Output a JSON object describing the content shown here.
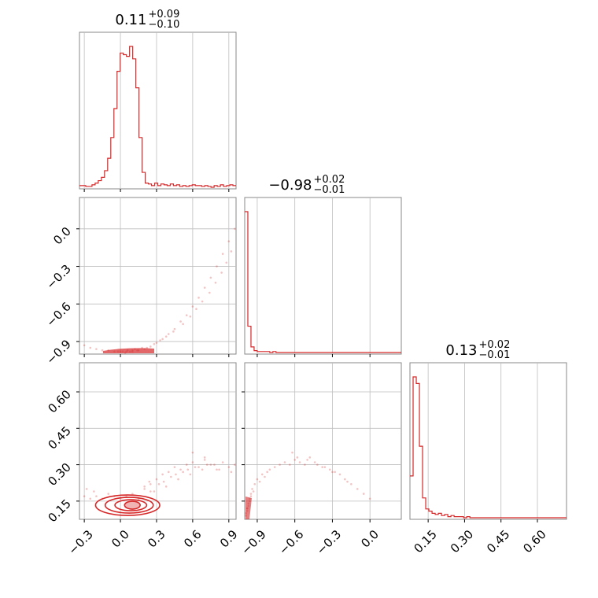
{
  "colors": {
    "series": "#d62728",
    "grid": "#bebebe",
    "frame": "#888888"
  },
  "chart_data": [
    {
      "type": "histogram",
      "panel": "diag-0",
      "title": {
        "value": "0.11",
        "plus": "+0.09",
        "minus": "−0.10"
      },
      "xlim": [
        -0.34,
        0.96
      ],
      "bin_width": 0.026,
      "counts": [
        2,
        2,
        1,
        1,
        3,
        5,
        8,
        12,
        20,
        35,
        60,
        95,
        140,
        162,
        160,
        158,
        170,
        155,
        120,
        60,
        18,
        5,
        4,
        2,
        5,
        2,
        4,
        3,
        2,
        4,
        2,
        3,
        1,
        2,
        1,
        2,
        3,
        2,
        2,
        1,
        2,
        1,
        0,
        2,
        1,
        3,
        1,
        2,
        3,
        2
      ]
    },
    {
      "type": "histogram",
      "panel": "diag-1",
      "title": {
        "value": "−0.98",
        "plus": "+0.02",
        "minus": "−0.01"
      },
      "xlim": [
        -1.0,
        0.25
      ],
      "bin_width": 0.025,
      "counts": [
        150,
        28,
        6,
        2,
        1,
        1,
        1,
        1,
        0,
        1,
        0,
        0,
        0,
        0,
        0,
        0,
        0,
        0,
        0,
        0,
        0,
        0,
        0,
        0,
        0,
        0,
        0,
        0,
        0,
        0,
        0,
        0,
        0,
        0,
        0,
        0,
        0,
        0,
        0,
        0,
        0,
        0,
        0,
        0,
        0,
        0,
        0,
        0,
        0,
        0
      ]
    },
    {
      "type": "histogram",
      "panel": "diag-2",
      "title": {
        "value": "0.13",
        "plus": "+0.02",
        "minus": "−0.01"
      },
      "xlim": [
        0.075,
        0.72
      ],
      "bin_width": 0.013,
      "counts": [
        38,
        128,
        122,
        65,
        18,
        8,
        6,
        4,
        3,
        4,
        2,
        3,
        1,
        2,
        1,
        1,
        1,
        0,
        1,
        0,
        0,
        0,
        0,
        0,
        0,
        0,
        0,
        0,
        0,
        0,
        0,
        0,
        0,
        0,
        0,
        0,
        0,
        0,
        0,
        0,
        0,
        0,
        0,
        0,
        0,
        0,
        0,
        0,
        0,
        0
      ]
    },
    {
      "type": "scatter",
      "panel": "x0-vs-x1",
      "xlim": [
        -0.34,
        0.96
      ],
      "ylim": [
        -1.0,
        0.25
      ],
      "x": [
        -0.3,
        -0.25,
        -0.2,
        -0.15,
        -0.1,
        -0.05,
        0.0,
        0.05,
        0.1,
        0.15,
        0.2,
        0.25,
        0.3,
        0.35,
        0.4,
        0.45,
        0.5,
        0.55,
        0.6,
        0.65,
        0.7,
        0.75,
        0.8,
        0.85,
        0.9,
        0.95,
        0.02,
        0.06,
        0.1,
        0.14,
        0.04,
        0.08,
        0.12,
        -0.02,
        0.18,
        0.22,
        0.28,
        0.33,
        0.38,
        0.44,
        0.52,
        0.58,
        0.63,
        0.68,
        0.74,
        0.79,
        0.84,
        0.88,
        0.92
      ],
      "y": [
        -0.93,
        -0.95,
        -0.96,
        -0.97,
        -0.97,
        -0.98,
        -0.98,
        -0.98,
        -0.97,
        -0.97,
        -0.96,
        -0.94,
        -0.91,
        -0.88,
        -0.84,
        -0.8,
        -0.74,
        -0.69,
        -0.62,
        -0.55,
        -0.47,
        -0.39,
        -0.3,
        -0.2,
        -0.1,
        0.0,
        -0.98,
        -0.97,
        -0.98,
        -0.97,
        -0.99,
        -0.98,
        -0.96,
        -0.98,
        -0.95,
        -0.95,
        -0.92,
        -0.89,
        -0.86,
        -0.82,
        -0.76,
        -0.7,
        -0.64,
        -0.58,
        -0.51,
        -0.43,
        -0.35,
        -0.27,
        -0.18
      ]
    },
    {
      "type": "scatter",
      "panel": "x0-vs-x2",
      "xlim": [
        -0.34,
        0.96
      ],
      "ylim": [
        0.075,
        0.72
      ],
      "contour_center": [
        0.06,
        0.13
      ],
      "x": [
        -0.3,
        -0.25,
        -0.2,
        -0.15,
        -0.1,
        -0.05,
        0.0,
        0.05,
        0.1,
        0.15,
        0.2,
        0.25,
        0.3,
        0.35,
        0.4,
        0.45,
        0.5,
        0.55,
        0.6,
        0.65,
        0.7,
        0.75,
        0.8,
        0.85,
        0.9,
        0.95,
        0.32,
        0.42,
        0.52,
        0.62,
        0.72,
        0.82,
        0.92,
        0.28,
        0.38,
        0.48,
        0.58,
        0.68,
        0.78,
        0.7,
        0.6,
        0.36,
        0.46,
        0.56,
        -0.28,
        -0.22,
        0.24,
        0.2,
        0.25
      ],
      "y": [
        0.17,
        0.16,
        0.17,
        0.16,
        0.18,
        0.17,
        0.16,
        0.17,
        0.18,
        0.16,
        0.2,
        0.22,
        0.24,
        0.26,
        0.27,
        0.29,
        0.28,
        0.3,
        0.31,
        0.29,
        0.33,
        0.3,
        0.28,
        0.31,
        0.29,
        0.3,
        0.22,
        0.25,
        0.27,
        0.29,
        0.3,
        0.28,
        0.27,
        0.19,
        0.21,
        0.24,
        0.26,
        0.28,
        0.3,
        0.32,
        0.35,
        0.23,
        0.26,
        0.28,
        0.2,
        0.19,
        0.23,
        0.21,
        0.19
      ]
    },
    {
      "type": "scatter",
      "panel": "x1-vs-x2",
      "xlim": [
        -1.0,
        0.25
      ],
      "ylim": [
        0.075,
        0.72
      ],
      "x": [
        -0.99,
        -0.98,
        -0.97,
        -0.96,
        -0.95,
        -0.94,
        -0.92,
        -0.9,
        -0.88,
        -0.86,
        -0.84,
        -0.82,
        -0.8,
        -0.76,
        -0.72,
        -0.68,
        -0.64,
        -0.6,
        -0.56,
        -0.52,
        -0.48,
        -0.44,
        -0.38,
        -0.32,
        -0.28,
        -0.24,
        -0.2,
        -0.15,
        -0.1,
        -0.05,
        0.0,
        -0.62,
        -0.58,
        -0.5,
        -0.42,
        -0.36,
        -0.3,
        -0.18,
        -0.98,
        -0.97,
        -0.96,
        -0.99,
        -0.98,
        -0.95,
        -0.93
      ],
      "y": [
        0.1,
        0.12,
        0.14,
        0.16,
        0.18,
        0.2,
        0.22,
        0.24,
        0.23,
        0.26,
        0.25,
        0.27,
        0.28,
        0.29,
        0.3,
        0.31,
        0.3,
        0.32,
        0.31,
        0.3,
        0.33,
        0.31,
        0.29,
        0.28,
        0.27,
        0.26,
        0.24,
        0.22,
        0.2,
        0.18,
        0.16,
        0.35,
        0.33,
        0.32,
        0.3,
        0.29,
        0.27,
        0.23,
        0.11,
        0.13,
        0.15,
        0.09,
        0.12,
        0.17,
        0.19
      ]
    }
  ],
  "axes": {
    "x0_ticks": [
      "−0.3",
      "0.0",
      "0.3",
      "0.6",
      "0.9"
    ],
    "x1_ticks": [
      "−0.9",
      "−0.6",
      "−0.3",
      "0.0"
    ],
    "x2_ticks": [
      "0.15",
      "0.30",
      "0.45",
      "0.60"
    ],
    "y1_ticks": [
      "0.0",
      "−0.3",
      "−0.6",
      "−0.9"
    ],
    "y2_ticks": [
      "0.60",
      "0.45",
      "0.30",
      "0.15"
    ]
  }
}
